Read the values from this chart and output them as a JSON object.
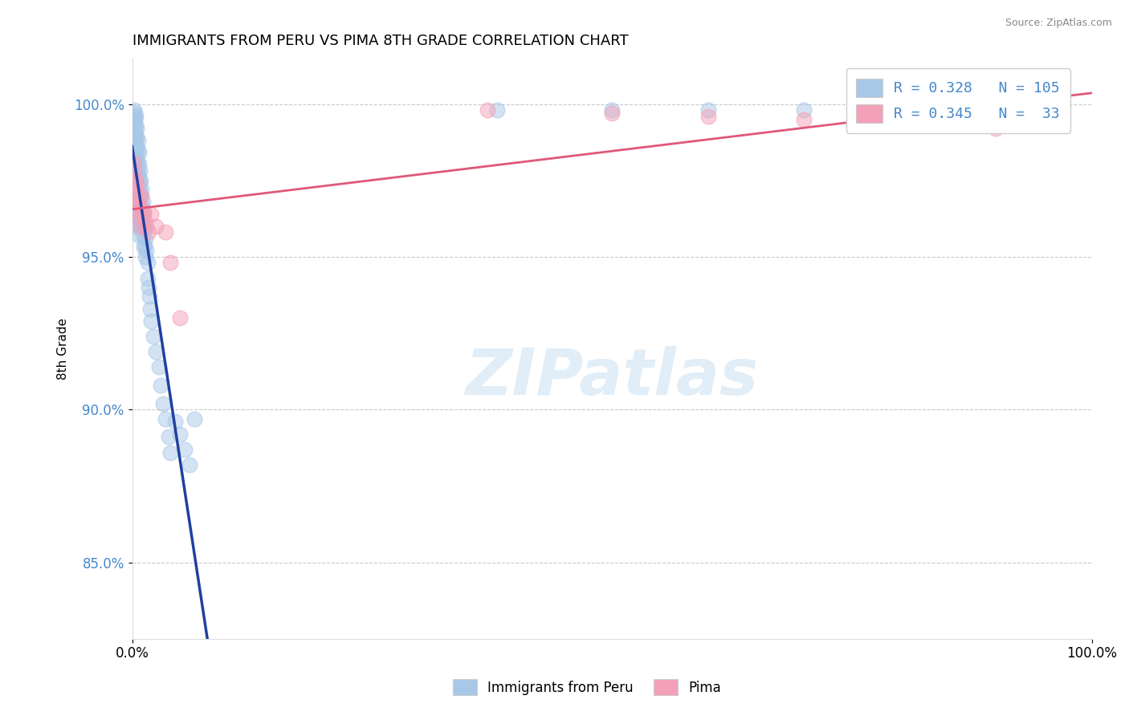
{
  "title": "IMMIGRANTS FROM PERU VS PIMA 8TH GRADE CORRELATION CHART",
  "source_text": "Source: ZipAtlas.com",
  "ylabel": "8th Grade",
  "xlim": [
    0.0,
    1.0
  ],
  "ylim": [
    0.825,
    1.015
  ],
  "x_ticks": [
    0.0,
    1.0
  ],
  "x_tick_labels": [
    "0.0%",
    "100.0%"
  ],
  "y_ticks": [
    0.85,
    0.9,
    0.95,
    1.0
  ],
  "y_tick_labels": [
    "85.0%",
    "90.0%",
    "95.0%",
    "100.0%"
  ],
  "legend_r1": "R = 0.328",
  "legend_n1": "N = 105",
  "legend_r2": "R = 0.345",
  "legend_n2": "33",
  "blue_color": "#A8C8E8",
  "pink_color": "#F4A0B8",
  "blue_line_color": "#2040A0",
  "pink_line_color": "#E05878",
  "watermark": "ZIPatlas",
  "blue_x": [
    0.001,
    0.001,
    0.001,
    0.002,
    0.002,
    0.002,
    0.002,
    0.002,
    0.002,
    0.002,
    0.002,
    0.003,
    0.003,
    0.003,
    0.003,
    0.003,
    0.003,
    0.003,
    0.003,
    0.003,
    0.003,
    0.003,
    0.004,
    0.004,
    0.004,
    0.004,
    0.004,
    0.004,
    0.004,
    0.004,
    0.004,
    0.004,
    0.005,
    0.005,
    0.005,
    0.005,
    0.005,
    0.005,
    0.005,
    0.005,
    0.005,
    0.006,
    0.006,
    0.006,
    0.006,
    0.006,
    0.006,
    0.006,
    0.007,
    0.007,
    0.007,
    0.007,
    0.007,
    0.007,
    0.007,
    0.008,
    0.008,
    0.008,
    0.008,
    0.008,
    0.009,
    0.009,
    0.009,
    0.009,
    0.01,
    0.01,
    0.01,
    0.011,
    0.011,
    0.011,
    0.012,
    0.012,
    0.012,
    0.013,
    0.013,
    0.014,
    0.014,
    0.015,
    0.016,
    0.016,
    0.017,
    0.018,
    0.019,
    0.02,
    0.022,
    0.025,
    0.028,
    0.03,
    0.032,
    0.035,
    0.038,
    0.04,
    0.045,
    0.05,
    0.055,
    0.06,
    0.065,
    0.38,
    0.5,
    0.6,
    0.7,
    0.8,
    0.85,
    0.9,
    0.95
  ],
  "blue_y": [
    0.99,
    0.985,
    0.98,
    0.998,
    0.996,
    0.994,
    0.991,
    0.988,
    0.985,
    0.982,
    0.978,
    0.997,
    0.995,
    0.992,
    0.99,
    0.987,
    0.984,
    0.98,
    0.976,
    0.972,
    0.968,
    0.965,
    0.996,
    0.993,
    0.99,
    0.987,
    0.984,
    0.98,
    0.975,
    0.97,
    0.966,
    0.962,
    0.992,
    0.989,
    0.986,
    0.982,
    0.978,
    0.974,
    0.97,
    0.965,
    0.96,
    0.988,
    0.985,
    0.981,
    0.977,
    0.973,
    0.968,
    0.963,
    0.984,
    0.98,
    0.976,
    0.972,
    0.967,
    0.962,
    0.957,
    0.978,
    0.974,
    0.97,
    0.965,
    0.96,
    0.975,
    0.97,
    0.965,
    0.96,
    0.972,
    0.967,
    0.961,
    0.968,
    0.963,
    0.957,
    0.964,
    0.959,
    0.953,
    0.96,
    0.954,
    0.956,
    0.95,
    0.952,
    0.948,
    0.943,
    0.94,
    0.937,
    0.933,
    0.929,
    0.924,
    0.919,
    0.914,
    0.908,
    0.902,
    0.897,
    0.891,
    0.886,
    0.896,
    0.892,
    0.887,
    0.882,
    0.897,
    0.998,
    0.998,
    0.998,
    0.998,
    0.998,
    0.998,
    0.998,
    0.998
  ],
  "pink_x": [
    0.001,
    0.002,
    0.002,
    0.003,
    0.003,
    0.004,
    0.004,
    0.005,
    0.005,
    0.006,
    0.006,
    0.007,
    0.008,
    0.009,
    0.01,
    0.011,
    0.012,
    0.013,
    0.015,
    0.017,
    0.02,
    0.025,
    0.035,
    0.04,
    0.05,
    0.37,
    0.5,
    0.6,
    0.7,
    0.8,
    0.85,
    0.9,
    0.95
  ],
  "pink_y": [
    0.981,
    0.978,
    0.975,
    0.972,
    0.969,
    0.975,
    0.971,
    0.974,
    0.968,
    0.97,
    0.965,
    0.967,
    0.963,
    0.96,
    0.97,
    0.965,
    0.965,
    0.962,
    0.96,
    0.958,
    0.964,
    0.96,
    0.958,
    0.948,
    0.93,
    0.998,
    0.997,
    0.996,
    0.995,
    0.994,
    0.993,
    0.992,
    0.998
  ]
}
